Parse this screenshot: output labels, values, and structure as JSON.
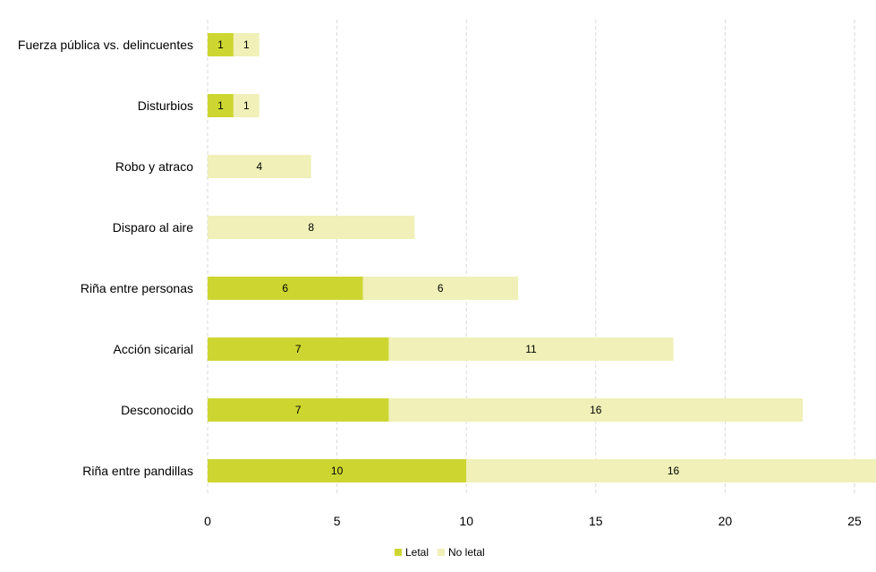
{
  "chart_data": {
    "type": "bar",
    "orientation": "horizontal",
    "stacked": true,
    "categories": [
      "Fuerza pública vs. delincuentes",
      "Disturbios",
      "Robo y atraco",
      "Disparo al aire",
      "Riña entre personas",
      "Acción sicarial",
      "Desconocido",
      "Riña entre pandillas"
    ],
    "series": [
      {
        "name": "Letal",
        "color": "#cdd631",
        "values": [
          1,
          1,
          0,
          0,
          6,
          7,
          7,
          10
        ]
      },
      {
        "name": "No letal",
        "color": "#f0f0b8",
        "values": [
          1,
          1,
          4,
          8,
          6,
          11,
          16,
          16
        ]
      }
    ],
    "xlim": [
      0,
      25
    ],
    "xticks": [
      0,
      5,
      10,
      15,
      20,
      25
    ],
    "grid": "vertical-dashed",
    "legend_position": "bottom-center",
    "data_labels": true
  }
}
